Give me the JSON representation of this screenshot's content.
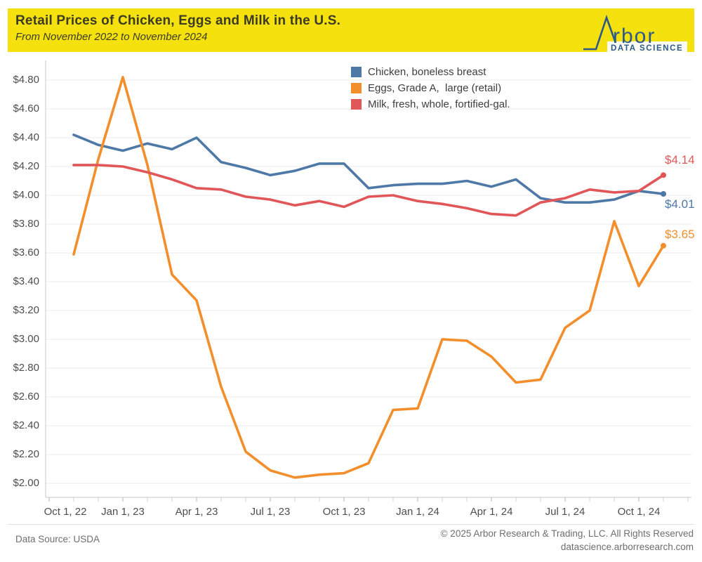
{
  "header": {
    "title": "Retail Prices of Chicken, Eggs and Milk in the U.S.",
    "subtitle": "From November 2022 to November 2024",
    "brand": {
      "logo_text": "rbor",
      "tagline": "DATA SCIENCE",
      "color": "#2d5a88",
      "background": "#f5e10e"
    }
  },
  "chart_data": {
    "type": "line",
    "title": "Retail Prices of Chicken, Eggs and Milk in the U.S.",
    "subtitle": "From November 2022 to November 2024",
    "x": [
      "Nov 22",
      "Dec 22",
      "Jan 23",
      "Feb 23",
      "Mar 23",
      "Apr 23",
      "May 23",
      "Jun 23",
      "Jul 23",
      "Aug 23",
      "Sep 23",
      "Oct 23",
      "Nov 23",
      "Dec 23",
      "Jan 24",
      "Feb 24",
      "Mar 24",
      "Apr 24",
      "May 24",
      "Jun 24",
      "Jul 24",
      "Aug 24",
      "Sep 24",
      "Oct 24",
      "Nov 24"
    ],
    "x_tick_labels": [
      "Oct 1, 22",
      "Jan 1, 23",
      "Apr 1, 23",
      "Jul 1, 23",
      "Oct 1, 23",
      "Jan 1, 24",
      "Apr 1, 24",
      "Jul 1, 24",
      "Oct 1, 24"
    ],
    "y_tick_labels": [
      "$2.00",
      "$2.20",
      "$2.40",
      "$2.60",
      "$2.80",
      "$3.00",
      "$3.20",
      "$3.40",
      "$3.60",
      "$3.80",
      "$4.00",
      "$4.20",
      "$4.40",
      "$4.60",
      "$4.80"
    ],
    "ylim": [
      2.0,
      4.8
    ],
    "y_tick_step": 0.2,
    "currency_prefix": "$",
    "grid": true,
    "legend_position": "top-inside",
    "series": [
      {
        "name": "Chicken, boneless breast",
        "color": "#4e79a7",
        "end_label": "$4.01",
        "values": [
          4.42,
          4.35,
          4.31,
          4.36,
          4.32,
          4.4,
          4.23,
          4.19,
          4.14,
          4.17,
          4.22,
          4.22,
          4.05,
          4.07,
          4.08,
          4.08,
          4.1,
          4.06,
          4.11,
          3.98,
          3.95,
          3.95,
          3.97,
          4.03,
          4.01
        ]
      },
      {
        "name": "Eggs, Grade A,  large (retail)",
        "color": "#f28e2b",
        "end_label": "$3.65",
        "values": [
          3.59,
          4.25,
          4.82,
          4.21,
          3.45,
          3.27,
          2.67,
          2.22,
          2.09,
          2.04,
          2.06,
          2.07,
          2.14,
          2.51,
          2.52,
          3.0,
          2.99,
          2.88,
          2.7,
          2.72,
          3.08,
          3.2,
          3.82,
          3.37,
          3.65
        ]
      },
      {
        "name": "Milk, fresh, whole, fortified-gal.",
        "color": "#e15759",
        "end_label": "$4.14",
        "values": [
          4.21,
          4.21,
          4.2,
          4.16,
          4.11,
          4.05,
          4.04,
          3.99,
          3.97,
          3.93,
          3.96,
          3.92,
          3.99,
          4.0,
          3.96,
          3.94,
          3.91,
          3.87,
          3.86,
          3.95,
          3.98,
          4.04,
          4.02,
          4.03,
          4.14
        ]
      }
    ]
  },
  "footer": {
    "source": "Data Source: USDA",
    "copyright": "© 2025 Arbor Research & Trading, LLC. All Rights Reserved",
    "website": "datascience.arborresearch.com"
  }
}
